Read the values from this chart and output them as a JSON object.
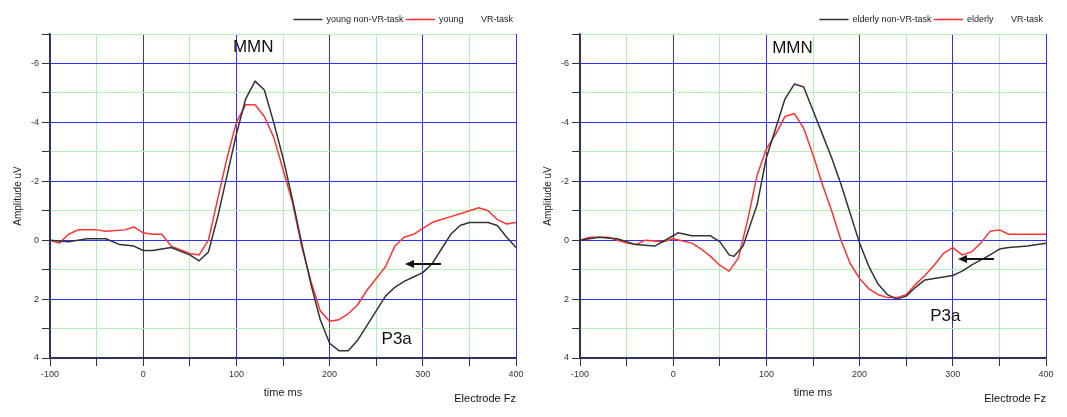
{
  "chart_data": [
    {
      "type": "line",
      "xlabel": "time ms",
      "ylabel": "Amplitude uV",
      "legend": "top right",
      "grid": true,
      "marker": "none",
      "line_style": "solid",
      "xlim": [
        -100,
        400
      ],
      "ylim": [
        4,
        -7
      ],
      "xticks": [
        -100,
        {
          "value": -50,
          "label": null
        },
        0,
        {
          "value": 50,
          "label": null
        },
        100,
        {
          "value": 150,
          "label": null
        },
        200,
        {
          "value": 250,
          "label": null
        },
        300,
        {
          "value": 350,
          "label": null
        },
        400
      ],
      "yticks": [
        {
          "value": -7,
          "label": null
        },
        -6,
        {
          "value": -5,
          "label": null
        },
        -4,
        {
          "value": -3,
          "label": null
        },
        -2,
        {
          "value": -1,
          "label": null
        },
        0,
        {
          "value": 1,
          "label": null
        },
        2,
        {
          "value": 3,
          "label": null
        },
        4
      ],
      "annotations": [
        "MMN",
        "P3a",
        "Electrode Fz"
      ],
      "series": [
        {
          "name": "young non-VR-task",
          "color": "#333333",
          "x": [
            -100,
            -80,
            -60,
            -40,
            -25,
            -10,
            0,
            10,
            30,
            50,
            60,
            70,
            80,
            90,
            100,
            110,
            120,
            130,
            140,
            150,
            160,
            170,
            180,
            190,
            200,
            210,
            220,
            230,
            240,
            250,
            260,
            270,
            280,
            290,
            300,
            310,
            320,
            330,
            340,
            350,
            360,
            370,
            380,
            390,
            400
          ],
          "values": [
            0,
            0.05,
            -0.05,
            -0.05,
            0.15,
            0.2,
            0.35,
            0.35,
            0.25,
            0.5,
            0.7,
            0.4,
            -0.8,
            -2.2,
            -3.6,
            -4.8,
            -5.4,
            -5.1,
            -4.0,
            -2.8,
            -1.4,
            0.1,
            1.5,
            2.7,
            3.5,
            3.75,
            3.75,
            3.4,
            2.9,
            2.4,
            1.9,
            1.6,
            1.4,
            1.25,
            1.1,
            0.8,
            0.3,
            -0.2,
            -0.5,
            -0.6,
            -0.6,
            -0.6,
            -0.5,
            -0.1,
            0.25
          ]
        },
        {
          "name": "young       VR-task",
          "color": "#ff3333",
          "x": [
            -100,
            -90,
            -80,
            -70,
            -50,
            -40,
            -20,
            -10,
            0,
            10,
            20,
            30,
            50,
            60,
            70,
            80,
            90,
            100,
            110,
            120,
            130,
            140,
            150,
            160,
            170,
            180,
            190,
            200,
            210,
            220,
            230,
            240,
            250,
            260,
            270,
            280,
            290,
            300,
            310,
            320,
            330,
            340,
            350,
            360,
            370,
            380,
            390,
            400
          ],
          "values": [
            0,
            0.1,
            -0.2,
            -0.35,
            -0.35,
            -0.3,
            -0.35,
            -0.45,
            -0.25,
            -0.2,
            -0.2,
            0.2,
            0.45,
            0.5,
            0,
            -1.4,
            -2.8,
            -4.0,
            -4.6,
            -4.6,
            -4.2,
            -3.5,
            -2.4,
            -1.3,
            0.2,
            1.4,
            2.4,
            2.75,
            2.7,
            2.5,
            2.2,
            1.7,
            1.3,
            0.9,
            0.2,
            -0.1,
            -0.2,
            -0.4,
            -0.6,
            -0.7,
            -0.8,
            -0.9,
            -1.0,
            -1.1,
            -1.0,
            -0.7,
            -0.55,
            -0.6
          ]
        }
      ]
    },
    {
      "type": "line",
      "xlabel": "time ms",
      "ylabel": "Amplitude uV",
      "legend": "top right",
      "grid": true,
      "marker": "none",
      "line_style": "solid",
      "xlim": [
        -100,
        400
      ],
      "ylim": [
        4,
        -7
      ],
      "xticks": [
        -100,
        {
          "value": -50,
          "label": null
        },
        0,
        {
          "value": 50,
          "label": null
        },
        100,
        {
          "value": 150,
          "label": null
        },
        200,
        {
          "value": 250,
          "label": null
        },
        300,
        {
          "value": 350,
          "label": null
        },
        400
      ],
      "yticks": [
        {
          "value": -7,
          "label": null
        },
        -6,
        {
          "value": -5,
          "label": null
        },
        -4,
        {
          "value": -3,
          "label": null
        },
        -2,
        {
          "value": -1,
          "label": null
        },
        0,
        {
          "value": 1,
          "label": null
        },
        2,
        {
          "value": 3,
          "label": null
        },
        4
      ],
      "annotations": [
        "MMN",
        "P3a",
        "Electrode Fz"
      ],
      "series": [
        {
          "name": "elderly non-VR-task",
          "color": "#333333",
          "x": [
            -100,
            -80,
            -60,
            -40,
            -20,
            0,
            5,
            20,
            40,
            50,
            60,
            65,
            75,
            90,
            100,
            110,
            120,
            130,
            140,
            150,
            160,
            170,
            180,
            190,
            200,
            210,
            220,
            230,
            240,
            250,
            260,
            270,
            280,
            300,
            310,
            320,
            340,
            350,
            360,
            380,
            400
          ],
          "values": [
            0,
            -0.1,
            -0.05,
            0.15,
            0.2,
            -0.15,
            -0.25,
            -0.15,
            -0.15,
            0.05,
            0.5,
            0.55,
            0.2,
            -1.2,
            -2.8,
            -3.8,
            -4.8,
            -5.3,
            -5.2,
            -4.4,
            -3.6,
            -2.8,
            -1.9,
            -0.9,
            0.1,
            0.9,
            1.5,
            1.85,
            2.0,
            1.9,
            1.6,
            1.35,
            1.3,
            1.2,
            1.05,
            0.85,
            0.5,
            0.3,
            0.25,
            0.2,
            0.1
          ]
        },
        {
          "name": "elderly       VR-task",
          "color": "#ff3333",
          "x": [
            -100,
            -90,
            -70,
            -50,
            -40,
            -30,
            -10,
            0,
            20,
            30,
            40,
            50,
            60,
            70,
            80,
            90,
            100,
            110,
            120,
            130,
            140,
            150,
            160,
            170,
            180,
            190,
            200,
            210,
            220,
            230,
            240,
            250,
            260,
            270,
            280,
            290,
            300,
            310,
            320,
            330,
            340,
            350,
            360,
            380,
            400
          ],
          "values": [
            0,
            -0.1,
            -0.1,
            0.1,
            0.15,
            0,
            0.05,
            -0.05,
            0.1,
            0.3,
            0.55,
            0.85,
            1.05,
            0.6,
            -0.7,
            -2.2,
            -3.1,
            -3.6,
            -4.2,
            -4.3,
            -3.8,
            -2.9,
            -1.9,
            -1.0,
            0,
            0.8,
            1.3,
            1.65,
            1.85,
            1.95,
            1.95,
            1.85,
            1.5,
            1.2,
            0.85,
            0.45,
            0.25,
            0.5,
            0.4,
            0.1,
            -0.3,
            -0.35,
            -0.2,
            -0.2,
            -0.2
          ]
        }
      ]
    }
  ]
}
